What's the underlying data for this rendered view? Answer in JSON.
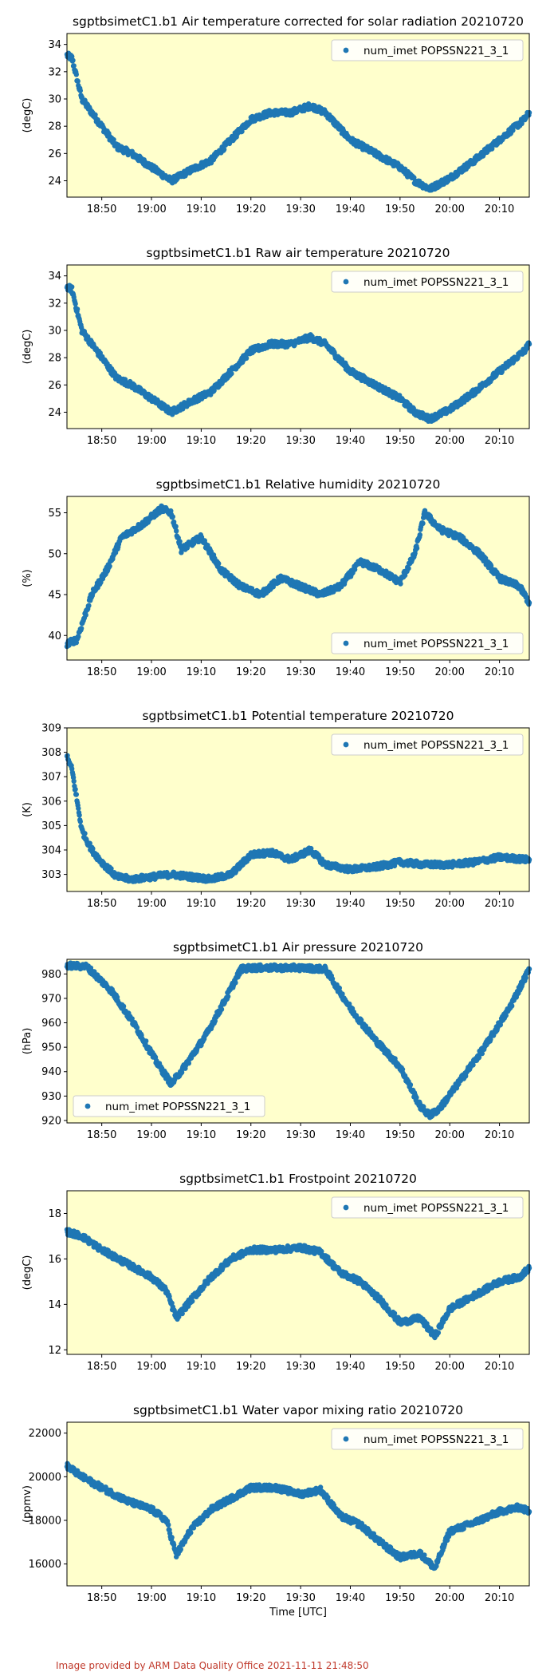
{
  "footer": "Image provided by ARM Data Quality Office 2021-11-11 21:48:50",
  "time_label": "Time [UTC]",
  "colors": {
    "plot_bg": "#ffffcc",
    "series": "#1f77b4"
  },
  "x_ticks": [
    "18:50",
    "19:00",
    "19:10",
    "19:20",
    "19:30",
    "19:40",
    "19:50",
    "20:00",
    "20:10"
  ],
  "chart_data": [
    {
      "type": "scatter",
      "title": "sgptbsimetC1.b1 Air temperature corrected for solar radiation 20210720",
      "ylabel": "(degC)",
      "ylim": [
        22.8,
        34.8
      ],
      "yticks": [
        24,
        26,
        28,
        30,
        32,
        34
      ],
      "legend": "top-right",
      "series": [
        {
          "name": "num_imet POPSSN221_3_1",
          "x": [
            "18:43",
            "18:44",
            "18:46",
            "18:48",
            "18:50",
            "18:53",
            "18:56",
            "19:00",
            "19:04",
            "19:08",
            "19:12",
            "19:16",
            "19:20",
            "19:24",
            "19:28",
            "19:32",
            "19:35",
            "19:40",
            "19:45",
            "19:50",
            "19:53",
            "19:56",
            "20:00",
            "20:05",
            "20:10",
            "20:15",
            "20:16"
          ],
          "y": [
            33.2,
            33,
            30,
            29,
            28,
            26.5,
            26,
            25,
            24,
            24.8,
            25.5,
            27,
            28.5,
            29,
            29,
            29.5,
            29,
            27,
            26,
            25,
            24,
            23.4,
            24.2,
            25.5,
            27,
            28.5,
            29
          ]
        }
      ]
    },
    {
      "type": "scatter",
      "title": "sgptbsimetC1.b1 Raw air temperature 20210720",
      "ylabel": "(degC)",
      "ylim": [
        22.8,
        34.8
      ],
      "yticks": [
        24,
        26,
        28,
        30,
        32,
        34
      ],
      "legend": "top-right",
      "series": [
        {
          "name": "num_imet POPSSN221_3_1",
          "x": [
            "18:43",
            "18:44",
            "18:46",
            "18:48",
            "18:50",
            "18:53",
            "18:56",
            "19:00",
            "19:04",
            "19:08",
            "19:12",
            "19:16",
            "19:20",
            "19:24",
            "19:28",
            "19:32",
            "19:35",
            "19:40",
            "19:45",
            "19:50",
            "19:53",
            "19:56",
            "20:00",
            "20:05",
            "20:10",
            "20:15",
            "20:16"
          ],
          "y": [
            33.2,
            33,
            30,
            29,
            28,
            26.5,
            26,
            25,
            24,
            24.8,
            25.5,
            27,
            28.5,
            29,
            29,
            29.5,
            29,
            27,
            26,
            25,
            24,
            23.5,
            24.2,
            25.5,
            27,
            28.5,
            29
          ]
        }
      ]
    },
    {
      "type": "scatter",
      "title": "sgptbsimetC1.b1 Relative humidity 20210720",
      "ylabel": "(%)",
      "ylim": [
        37,
        57
      ],
      "yticks": [
        40,
        45,
        50,
        55
      ],
      "legend": "bottom-right",
      "series": [
        {
          "name": "num_imet POPSSN221_3_1",
          "x": [
            "18:43",
            "18:45",
            "18:48",
            "18:51",
            "18:54",
            "18:58",
            "19:02",
            "19:04",
            "19:06",
            "19:10",
            "19:14",
            "19:18",
            "19:22",
            "19:26",
            "19:30",
            "19:34",
            "19:38",
            "19:42",
            "19:46",
            "19:50",
            "19:53",
            "19:55",
            "19:58",
            "20:02",
            "20:06",
            "20:10",
            "20:14",
            "20:16"
          ],
          "y": [
            39,
            39.5,
            45,
            48,
            52,
            53.5,
            55.5,
            55,
            50.5,
            52,
            48,
            46,
            45,
            47,
            46,
            45,
            46,
            49,
            48,
            46.5,
            50,
            55,
            53,
            52,
            50,
            47,
            46,
            44
          ]
        }
      ]
    },
    {
      "type": "scatter",
      "title": "sgptbsimetC1.b1 Potential temperature 20210720",
      "ylabel": "(K)",
      "ylim": [
        302.3,
        309
      ],
      "yticks": [
        303,
        304,
        305,
        306,
        307,
        308,
        309
      ],
      "legend": "top-right",
      "series": [
        {
          "name": "num_imet POPSSN221_3_1",
          "x": [
            "18:43",
            "18:44",
            "18:46",
            "18:48",
            "18:50",
            "18:53",
            "18:56",
            "19:00",
            "19:04",
            "19:08",
            "19:12",
            "19:16",
            "19:20",
            "19:24",
            "19:28",
            "19:32",
            "19:35",
            "19:40",
            "19:45",
            "19:50",
            "19:55",
            "20:00",
            "20:05",
            "20:10",
            "20:16"
          ],
          "y": [
            307.8,
            307.3,
            304.8,
            304,
            303.5,
            302.9,
            302.8,
            302.9,
            303,
            302.9,
            302.8,
            303,
            303.8,
            303.9,
            303.6,
            304,
            303.4,
            303.2,
            303.3,
            303.5,
            303.4,
            303.4,
            303.5,
            303.7,
            303.6
          ]
        }
      ]
    },
    {
      "type": "scatter",
      "title": "sgptbsimetC1.b1 Air pressure 20210720",
      "ylabel": "(hPa)",
      "ylim": [
        919,
        986
      ],
      "yticks": [
        920,
        930,
        940,
        950,
        960,
        970,
        980
      ],
      "legend": "bottom-left",
      "series": [
        {
          "name": "num_imet POPSSN221_3_1",
          "x": [
            "18:43",
            "18:47",
            "18:52",
            "18:57",
            "19:01",
            "19:04",
            "19:07",
            "19:11",
            "19:15",
            "19:18",
            "19:20",
            "19:25",
            "19:30",
            "19:35",
            "19:40",
            "19:45",
            "19:50",
            "19:54",
            "19:56",
            "19:58",
            "20:02",
            "20:07",
            "20:12",
            "20:16"
          ],
          "y": [
            983.5,
            983,
            973,
            958,
            944,
            935,
            943,
            955,
            970,
            982,
            982.5,
            982.5,
            982.5,
            982,
            966,
            953,
            942,
            926,
            922,
            925,
            936,
            950,
            966,
            982
          ]
        }
      ]
    },
    {
      "type": "scatter",
      "title": "sgptbsimetC1.b1 Frostpoint 20210720",
      "ylabel": "(degC)",
      "ylim": [
        11.8,
        19
      ],
      "yticks": [
        12,
        14,
        16,
        18
      ],
      "legend": "top-right",
      "series": [
        {
          "name": "num_imet POPSSN221_3_1",
          "x": [
            "18:43",
            "18:46",
            "18:50",
            "18:55",
            "19:00",
            "19:03",
            "19:05",
            "19:08",
            "19:12",
            "19:16",
            "19:20",
            "19:25",
            "19:30",
            "19:34",
            "19:38",
            "19:42",
            "19:46",
            "19:50",
            "19:54",
            "19:57",
            "20:00",
            "20:05",
            "20:10",
            "20:14",
            "20:16"
          ],
          "y": [
            17.2,
            17,
            16.4,
            15.8,
            15.2,
            14.6,
            13.4,
            14.2,
            15.2,
            16.0,
            16.4,
            16.4,
            16.5,
            16.3,
            15.4,
            15.0,
            14.2,
            13.2,
            13.4,
            12.6,
            13.8,
            14.4,
            15.0,
            15.2,
            15.6
          ]
        }
      ]
    },
    {
      "type": "scatter",
      "title": "sgptbsimetC1.b1 Water vapor mixing ratio 20210720",
      "ylabel": "(ppmv)",
      "ylim": [
        15000,
        22500
      ],
      "yticks": [
        16000,
        18000,
        20000,
        22000
      ],
      "xlabel": "Time [UTC]",
      "legend": "top-right",
      "series": [
        {
          "name": "num_imet POPSSN221_3_1",
          "x": [
            "18:43",
            "18:46",
            "18:50",
            "18:55",
            "19:00",
            "19:03",
            "19:05",
            "19:08",
            "19:12",
            "19:16",
            "19:20",
            "19:25",
            "19:30",
            "19:34",
            "19:38",
            "19:42",
            "19:46",
            "19:50",
            "19:54",
            "19:57",
            "20:00",
            "20:05",
            "20:10",
            "20:14",
            "20:16"
          ],
          "y": [
            20500,
            20000,
            19500,
            18900,
            18500,
            18000,
            16400,
            17600,
            18500,
            19000,
            19500,
            19500,
            19200,
            19400,
            18200,
            17800,
            17000,
            16300,
            16500,
            15800,
            17500,
            17900,
            18400,
            18600,
            18400
          ]
        }
      ]
    }
  ]
}
